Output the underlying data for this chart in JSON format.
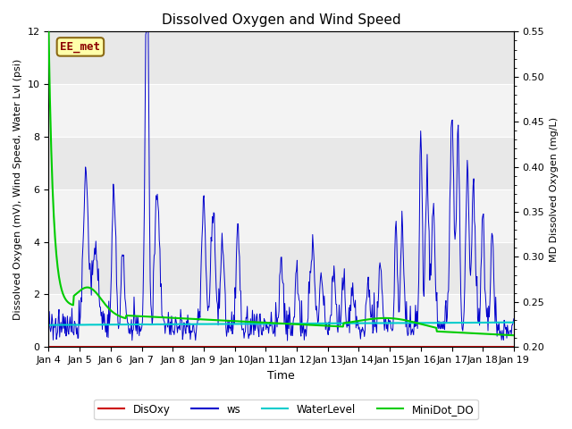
{
  "title": "Dissolved Oxygen and Wind Speed",
  "ylabel_left": "Dissolved Oxygen (mV), Wind Speed, Water Lvl (psi)",
  "ylabel_right": "MD Dissolved Oxygen (mg/L)",
  "xlabel": "Time",
  "ylim_left": [
    0,
    12
  ],
  "ylim_right": [
    0.2,
    0.55
  ],
  "yticks_left": [
    0,
    2,
    4,
    6,
    8,
    10,
    12
  ],
  "yticks_right": [
    0.2,
    0.25,
    0.3,
    0.35,
    0.4,
    0.45,
    0.5,
    0.55
  ],
  "xtick_labels": [
    "Jan 4",
    "Jan 5",
    "Jan 6",
    "Jan 7",
    "Jan 8",
    "Jan 9",
    "Jan 10",
    "Jan 11",
    "Jan 12",
    "Jan 13",
    "Jan 14",
    "Jan 15",
    "Jan 16",
    "Jan 17",
    "Jan 18",
    "Jan 19"
  ],
  "plot_bg_color": "#e8e8e8",
  "band_color": "#d4d4d4",
  "white_band": "#ffffff",
  "annotation_text": "EE_met",
  "annotation_color": "#8b0000",
  "annotation_bg": "#ffffaa",
  "annotation_border": "#8b6914",
  "colors": {
    "DisOxy": "#cc0000",
    "ws": "#0000cc",
    "WaterLevel": "#00cccc",
    "MiniDot_DO": "#00cc00"
  },
  "legend_labels": [
    "DisOxy",
    "ws",
    "WaterLevel",
    "MiniDot_DO"
  ]
}
